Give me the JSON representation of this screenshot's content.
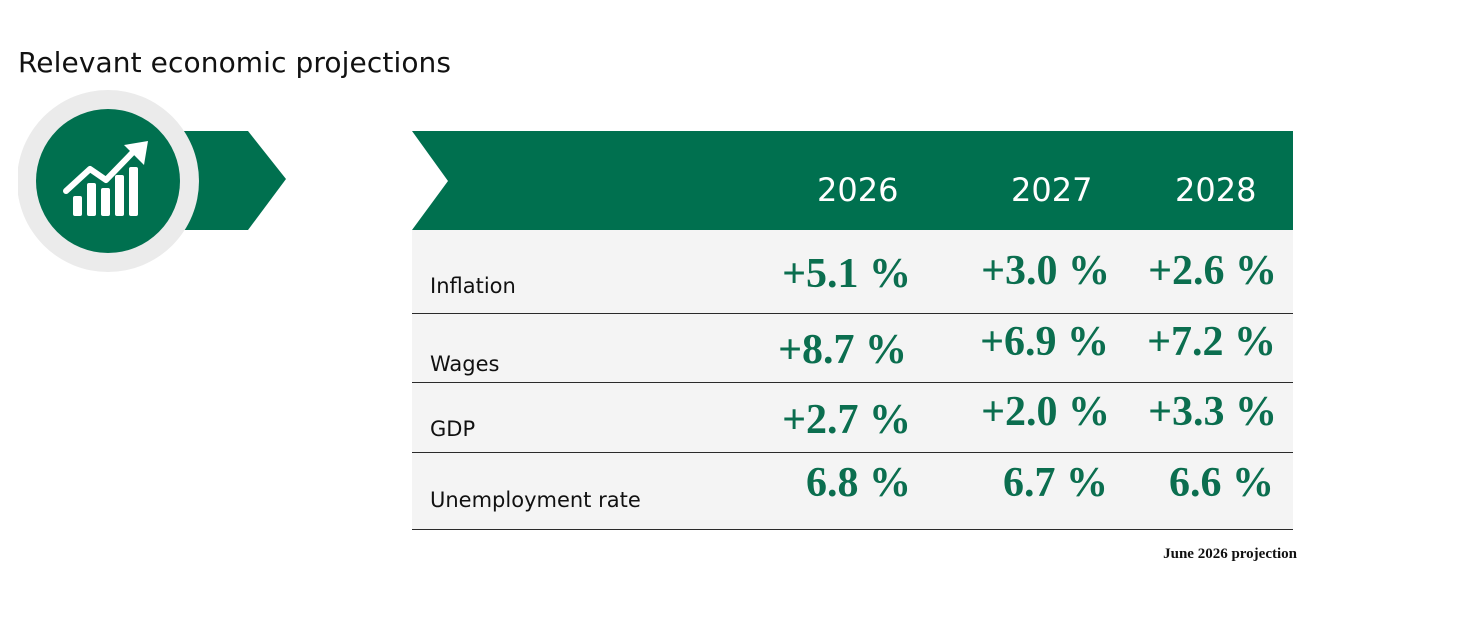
{
  "page": {
    "title": "Relevant economic projections",
    "icon": "growth-chart-icon",
    "accent_color": "#00704f",
    "footnote": "June 2026 projection"
  },
  "table": {
    "years": [
      "2026",
      "2027",
      "2028"
    ],
    "rows": [
      {
        "label": "Inflation",
        "values": [
          "+5.1 %",
          "+3.0 %",
          "+2.6 %"
        ]
      },
      {
        "label": "Wages",
        "values": [
          "+8.7 %",
          "+6.9 %",
          "+7.2 %"
        ]
      },
      {
        "label": "GDP",
        "values": [
          "+2.7 %",
          "+2.0 %",
          "+3.3 %"
        ]
      },
      {
        "label": "Unemployment rate",
        "values": [
          "6.8 %",
          "6.7 %",
          "6.6 %"
        ]
      }
    ]
  }
}
